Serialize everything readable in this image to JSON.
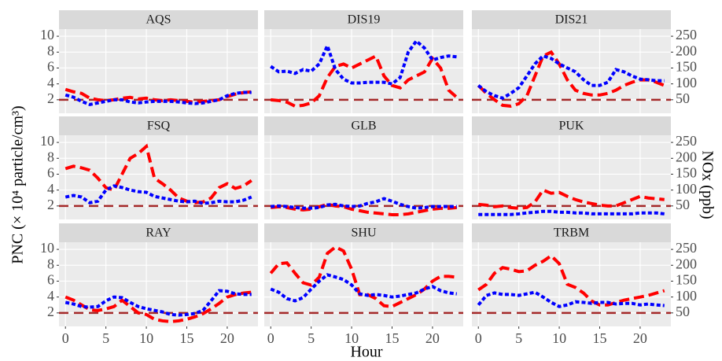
{
  "chart_data": {
    "type": "line",
    "xlabel": "Hour",
    "ylabel": "PNC (× 10⁴ particle/cm³)",
    "y2label": "NOx (ppb)",
    "x": [
      0,
      1,
      2,
      3,
      4,
      5,
      6,
      7,
      8,
      9,
      10,
      11,
      12,
      13,
      14,
      15,
      16,
      17,
      18,
      19,
      20,
      21,
      22,
      23
    ],
    "xlim": [
      -0.8,
      23.8
    ],
    "xticks": [
      0,
      5,
      10,
      15,
      20
    ],
    "ylim": [
      0.3,
      10.9
    ],
    "yticks": [
      2,
      4,
      6,
      8,
      10
    ],
    "y2lim": [
      7.5,
      272.5
    ],
    "y2ticks": [
      50,
      100,
      150,
      200,
      250
    ],
    "hline": 2,
    "hline_color": "#a52a2a",
    "grid": true,
    "panels": [
      {
        "title": "AQS",
        "series": [
          {
            "color": "#ff0000",
            "linestyle": "dashed",
            "values": [
              3.3,
              3.0,
              2.8,
              2.2,
              2.0,
              1.9,
              2.0,
              2.2,
              2.3,
              2.1,
              2.2,
              2.0,
              1.9,
              2.0,
              1.9,
              1.8,
              1.7,
              1.8,
              1.9,
              2.0,
              2.4,
              2.7,
              2.9,
              3.0
            ]
          },
          {
            "color": "#0000ff",
            "linestyle": "dotted",
            "axis": "y2",
            "values": [
              65,
              58,
              45,
              35,
              40,
              45,
              50,
              50,
              43,
              40,
              43,
              45,
              45,
              45,
              43,
              40,
              38,
              40,
              45,
              50,
              63,
              70,
              73,
              73
            ]
          }
        ]
      },
      {
        "title": "DIS19",
        "series": [
          {
            "color": "#ff0000",
            "linestyle": "dashed",
            "values": [
              2.0,
              1.9,
              1.7,
              1.2,
              1.3,
              1.6,
              2.5,
              4.8,
              6.2,
              6.5,
              6.0,
              6.5,
              7.0,
              7.5,
              5.0,
              3.8,
              3.5,
              4.5,
              5.0,
              5.5,
              7.2,
              6.0,
              3.2,
              2.3
            ]
          },
          {
            "color": "#0000ff",
            "linestyle": "dotted",
            "axis": "y2",
            "values": [
              155,
              138,
              140,
              133,
              145,
              140,
              163,
              220,
              145,
              115,
              103,
              103,
              105,
              105,
              105,
              100,
              120,
              200,
              235,
              213,
              175,
              183,
              188,
              185
            ]
          }
        ]
      },
      {
        "title": "DIS21",
        "series": [
          {
            "color": "#ff0000",
            "linestyle": "dashed",
            "values": [
              3.8,
              2.8,
              2.0,
              1.3,
              1.2,
              1.5,
              2.5,
              5.0,
              7.5,
              8.0,
              6.5,
              4.5,
              3.2,
              2.8,
              2.6,
              2.6,
              2.8,
              3.2,
              3.8,
              4.2,
              4.5,
              4.5,
              4.2,
              3.8
            ]
          },
          {
            "color": "#0000ff",
            "linestyle": "dotted",
            "axis": "y2",
            "values": [
              95,
              75,
              63,
              55,
              70,
              88,
              125,
              163,
              188,
              180,
              163,
              150,
              138,
              113,
              95,
              95,
              105,
              145,
              138,
              125,
              115,
              113,
              110,
              110
            ]
          }
        ]
      },
      {
        "title": "FSQ",
        "series": [
          {
            "color": "#ff0000",
            "linestyle": "dashed",
            "values": [
              6.7,
              7.0,
              6.8,
              6.5,
              5.5,
              4.3,
              4.0,
              6.0,
              8.0,
              8.6,
              9.5,
              5.5,
              4.8,
              4.0,
              3.0,
              2.6,
              2.4,
              2.5,
              3.0,
              4.3,
              4.8,
              4.2,
              4.5,
              5.2
            ]
          },
          {
            "color": "#0000ff",
            "linestyle": "dotted",
            "axis": "y2",
            "values": [
              78,
              83,
              78,
              60,
              65,
              100,
              113,
              108,
              100,
              95,
              93,
              80,
              75,
              70,
              65,
              63,
              65,
              58,
              60,
              65,
              63,
              63,
              68,
              78
            ]
          }
        ]
      },
      {
        "title": "GLB",
        "series": [
          {
            "color": "#ff0000",
            "linestyle": "dashed",
            "values": [
              1.8,
              1.9,
              1.8,
              1.6,
              1.5,
              1.6,
              1.9,
              2.2,
              2.0,
              1.9,
              1.6,
              1.4,
              1.2,
              1.1,
              1.0,
              0.9,
              0.9,
              1.0,
              1.2,
              1.4,
              1.6,
              1.7,
              1.7,
              1.8
            ]
          },
          {
            "color": "#0000ff",
            "linestyle": "dotted",
            "axis": "y2",
            "values": [
              48,
              50,
              48,
              45,
              43,
              43,
              45,
              53,
              55,
              50,
              48,
              50,
              58,
              63,
              73,
              65,
              55,
              48,
              43,
              45,
              48,
              48,
              48,
              48
            ]
          }
        ]
      },
      {
        "title": "PUK",
        "series": [
          {
            "color": "#ff0000",
            "linestyle": "dashed",
            "values": [
              2.2,
              2.1,
              1.9,
              2.0,
              1.8,
              1.7,
              1.8,
              2.5,
              4.0,
              3.6,
              3.7,
              3.2,
              2.8,
              2.5,
              2.3,
              2.1,
              2.0,
              2.0,
              2.4,
              2.8,
              3.2,
              3.0,
              2.9,
              2.8
            ]
          },
          {
            "color": "#0000ff",
            "linestyle": "dotted",
            "axis": "y2",
            "values": [
              23,
              23,
              23,
              23,
              23,
              25,
              28,
              30,
              33,
              33,
              30,
              30,
              28,
              28,
              25,
              25,
              25,
              25,
              25,
              25,
              28,
              28,
              28,
              25
            ]
          }
        ]
      },
      {
        "title": "RAY",
        "series": [
          {
            "color": "#ff0000",
            "linestyle": "dashed",
            "values": [
              4.0,
              3.6,
              3.0,
              2.4,
              2.3,
              2.5,
              2.8,
              3.6,
              2.8,
              2.0,
              1.8,
              1.2,
              1.0,
              0.9,
              1.0,
              1.2,
              1.5,
              1.9,
              2.5,
              3.2,
              4.0,
              4.3,
              4.5,
              4.6
            ]
          },
          {
            "color": "#0000ff",
            "linestyle": "dotted",
            "axis": "y2",
            "values": [
              83,
              78,
              70,
              68,
              70,
              88,
              100,
              98,
              83,
              70,
              63,
              58,
              53,
              45,
              43,
              45,
              48,
              58,
              88,
              120,
              118,
              110,
              108,
              108
            ]
          }
        ]
      },
      {
        "title": "SHU",
        "series": [
          {
            "color": "#ff0000",
            "linestyle": "dashed",
            "values": [
              7.0,
              8.2,
              8.3,
              7.0,
              5.8,
              5.5,
              6.5,
              9.5,
              10.3,
              9.8,
              7.5,
              4.3,
              4.3,
              3.8,
              2.9,
              2.8,
              3.3,
              3.8,
              4.3,
              5.0,
              6.0,
              6.6,
              6.6,
              6.5
            ]
          },
          {
            "color": "#0000ff",
            "linestyle": "dotted",
            "axis": "y2",
            "values": [
              125,
              115,
              95,
              88,
              98,
              125,
              150,
              170,
              163,
              155,
              138,
              110,
              105,
              108,
              105,
              100,
              103,
              108,
              113,
              125,
              133,
              120,
              113,
              110
            ]
          }
        ]
      },
      {
        "title": "TRBM",
        "series": [
          {
            "color": "#ff0000",
            "linestyle": "dashed",
            "values": [
              4.9,
              5.6,
              7.0,
              7.7,
              7.5,
              7.2,
              7.3,
              8.0,
              8.5,
              9.2,
              8.2,
              5.6,
              5.2,
              4.5,
              3.5,
              3.0,
              3.0,
              3.3,
              3.6,
              3.8,
              4.0,
              4.2,
              4.5,
              4.8
            ]
          },
          {
            "color": "#0000ff",
            "linestyle": "dotted",
            "axis": "y2",
            "values": [
              75,
              105,
              113,
              108,
              108,
              105,
              110,
              115,
              100,
              83,
              70,
              75,
              85,
              83,
              80,
              83,
              83,
              78,
              80,
              80,
              75,
              78,
              75,
              73
            ]
          }
        ]
      }
    ]
  }
}
